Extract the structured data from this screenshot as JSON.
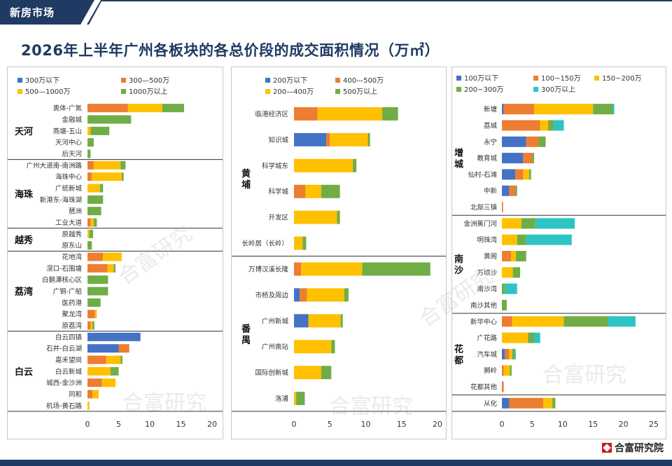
{
  "header": {
    "banner": "新房市场",
    "title": "2026年上半年广州各板块的各总价段的成交面积情况（万㎡）"
  },
  "brand": {
    "name": "合富研究院"
  },
  "watermark": "合富研究",
  "colors": {
    "navy": "#1f3b63",
    "blue": "#4472c4",
    "orange": "#ed7d31",
    "yellow": "#ffc000",
    "green": "#70ad47",
    "teal": "#2ec4c4"
  },
  "chart_data": [
    {
      "type": "bar",
      "orientation": "horizontal",
      "stacked": true,
      "legend": [
        "300万以下",
        "300—500万",
        "500—1000万",
        "1000万以上"
      ],
      "xlim": [
        0,
        20
      ],
      "xticks": [
        "0",
        "5",
        "10",
        "15",
        "20"
      ],
      "groups": [
        {
          "label": "天河",
          "rows": [
            {
              "name": "奥体-广氮",
              "values": [
                0,
                6.5,
                5.5,
                3.5
              ]
            },
            {
              "name": "金融城",
              "values": [
                0,
                0,
                0,
                7
              ]
            },
            {
              "name": "燕塘-五山",
              "values": [
                0,
                0,
                0.5,
                3
              ]
            },
            {
              "name": "天河中心",
              "values": [
                0,
                0,
                0,
                1
              ]
            },
            {
              "name": "后天河",
              "values": [
                0,
                0,
                0,
                0.5
              ]
            }
          ]
        },
        {
          "label": "海珠",
          "rows": [
            {
              "name": "广州大道南-南洲路",
              "values": [
                0,
                1,
                4.3,
                0.8
              ]
            },
            {
              "name": "海珠中心",
              "values": [
                0,
                0.7,
                4.8,
                0.3
              ]
            },
            {
              "name": "广纸新城",
              "values": [
                0,
                0,
                2,
                0.5
              ]
            },
            {
              "name": "新港东-海珠湖",
              "values": [
                0,
                0,
                0,
                2.5
              ]
            },
            {
              "name": "琶洲",
              "values": [
                0,
                0,
                0,
                2.2
              ]
            },
            {
              "name": "工业大道",
              "values": [
                0,
                0.5,
                0.5,
                0.5
              ]
            }
          ]
        },
        {
          "label": "越秀",
          "rows": [
            {
              "name": "原越秀",
              "values": [
                0,
                0,
                0.3,
                0.6
              ]
            },
            {
              "name": "原东山",
              "values": [
                0,
                0,
                0,
                0.7
              ]
            }
          ]
        },
        {
          "label": "荔湾",
          "rows": [
            {
              "name": "花地湾",
              "values": [
                0,
                2.5,
                3,
                0
              ]
            },
            {
              "name": "滘口-石围塘",
              "values": [
                0,
                3.2,
                1,
                0.3
              ]
            },
            {
              "name": "白鹅潭核心区",
              "values": [
                0,
                0,
                0,
                3.3
              ]
            },
            {
              "name": "广钢-广船",
              "values": [
                0,
                0,
                0,
                3.3
              ]
            },
            {
              "name": "医药港",
              "values": [
                0,
                0,
                0,
                2.1
              ]
            },
            {
              "name": "聚龙湾",
              "values": [
                0,
                1.2,
                0.3,
                0
              ]
            },
            {
              "name": "原荔湾",
              "values": [
                0,
                0.5,
                0.3,
                0.3
              ]
            }
          ]
        },
        {
          "label": "白云",
          "rows": [
            {
              "name": "白云四镇",
              "values": [
                8.5,
                0,
                0,
                0
              ]
            },
            {
              "name": "石井-白云湖",
              "values": [
                5,
                1.7,
                0,
                0
              ]
            },
            {
              "name": "嘉禾望岗",
              "values": [
                0,
                3,
                2.3,
                0.3
              ]
            },
            {
              "name": "白云新城",
              "values": [
                0,
                0,
                3.7,
                1.3
              ]
            },
            {
              "name": "城西-金沙洲",
              "values": [
                0,
                2.3,
                2.2,
                0
              ]
            },
            {
              "name": "同和",
              "values": [
                0,
                0.8,
                1,
                0
              ]
            },
            {
              "name": "机场-黄石路",
              "values": [
                0,
                0,
                0.3,
                0
              ]
            }
          ]
        }
      ]
    },
    {
      "type": "bar",
      "orientation": "horizontal",
      "stacked": true,
      "legend": [
        "200万以下",
        "400—500万",
        "200—400万",
        "500万以上"
      ],
      "xlim": [
        0,
        20
      ],
      "xticks": [
        "0",
        "5",
        "10",
        "15",
        "20"
      ],
      "groups": [
        {
          "label": "黄埔",
          "rows": [
            {
              "name": "临港经济区",
              "values": [
                0,
                3.3,
                9,
                2.2
              ]
            },
            {
              "name": "知识城",
              "values": [
                4.5,
                0.5,
                5.3,
                0.3
              ]
            },
            {
              "name": "科学城东",
              "values": [
                0,
                0,
                8.2,
                0.5
              ]
            },
            {
              "name": "科学城",
              "values": [
                0,
                1.6,
                2.2,
                2.6
              ]
            },
            {
              "name": "开发区",
              "values": [
                0,
                0,
                6,
                0.4
              ]
            },
            {
              "name": "长岭居（长岭）",
              "values": [
                0,
                0,
                1.2,
                0.5
              ]
            }
          ]
        },
        {
          "label": "番禺",
          "rows": [
            {
              "name": "万博汉溪长隆",
              "values": [
                0,
                1,
                8.5,
                9.5
              ]
            },
            {
              "name": "市桥及周边",
              "values": [
                0.8,
                1,
                5.2,
                0.6
              ]
            },
            {
              "name": "广州新城",
              "values": [
                2,
                0,
                4.5,
                0.3
              ]
            },
            {
              "name": "广州南站",
              "values": [
                0,
                0,
                5.2,
                0.5
              ]
            },
            {
              "name": "国际创新城",
              "values": [
                0,
                0,
                3.8,
                1.4
              ]
            },
            {
              "name": "洛浦",
              "values": [
                0,
                0,
                0.3,
                1.2
              ]
            }
          ]
        }
      ]
    },
    {
      "type": "bar",
      "orientation": "horizontal",
      "stacked": true,
      "legend": [
        "100万以下",
        "100~150万",
        "150~200万",
        "200~300万",
        "300万以上"
      ],
      "xlim": [
        0,
        25
      ],
      "xticks": [
        "0",
        "5",
        "10",
        "15",
        "20",
        "25"
      ],
      "groups": [
        {
          "label": "增城",
          "rows": [
            {
              "name": "新塘",
              "values": [
                0.3,
                5,
                9.7,
                3.2,
                0.3
              ]
            },
            {
              "name": "荔城",
              "values": [
                0,
                6.3,
                1.3,
                1,
                1.6
              ]
            },
            {
              "name": "永宁",
              "values": [
                4,
                2,
                0,
                1.2,
                0
              ]
            },
            {
              "name": "教育城",
              "values": [
                3.5,
                1.5,
                0,
                0.3,
                0
              ]
            },
            {
              "name": "仙村-石滩",
              "values": [
                2.2,
                1.3,
                1,
                0.3,
                0
              ]
            },
            {
              "name": "中新",
              "values": [
                1.2,
                1,
                0,
                0.3,
                0
              ]
            },
            {
              "name": "北部三镇",
              "values": [
                0,
                0.2,
                0,
                0,
                0
              ]
            }
          ]
        },
        {
          "label": "南沙",
          "rows": [
            {
              "name": "金洲蕉门河",
              "values": [
                0,
                0,
                3.2,
                2.3,
                6.5
              ]
            },
            {
              "name": "明珠湾",
              "values": [
                0,
                0,
                2.5,
                1.5,
                7.5
              ]
            },
            {
              "name": "黄阁",
              "values": [
                0,
                1.5,
                0.8,
                1.7,
                0
              ]
            },
            {
              "name": "万顷沙",
              "values": [
                0,
                0,
                1.8,
                1.2,
                0
              ]
            },
            {
              "name": "南沙湾",
              "values": [
                0,
                0,
                0,
                0.5,
                2
              ]
            },
            {
              "name": "南沙其他",
              "values": [
                0,
                0,
                0,
                0.8,
                0
              ]
            }
          ]
        },
        {
          "label": "花都",
          "rows": [
            {
              "name": "新华中心",
              "values": [
                0,
                1.7,
                8.5,
                7.3,
                4.5
              ]
            },
            {
              "name": "广花路",
              "values": [
                0,
                0,
                4.3,
                1,
                1
              ]
            },
            {
              "name": "汽车城",
              "values": [
                0.5,
                0.7,
                0.5,
                0.4,
                0.2
              ]
            },
            {
              "name": "狮岭",
              "values": [
                0,
                0.3,
                1,
                0.3,
                0
              ]
            },
            {
              "name": "花都其他",
              "values": [
                0,
                0.3,
                0,
                0,
                0
              ]
            }
          ]
        },
        {
          "label": "",
          "rows": [
            {
              "name": "从化",
              "values": [
                1.2,
                5.6,
                1.5,
                0.5,
                0
              ]
            }
          ]
        }
      ]
    }
  ]
}
